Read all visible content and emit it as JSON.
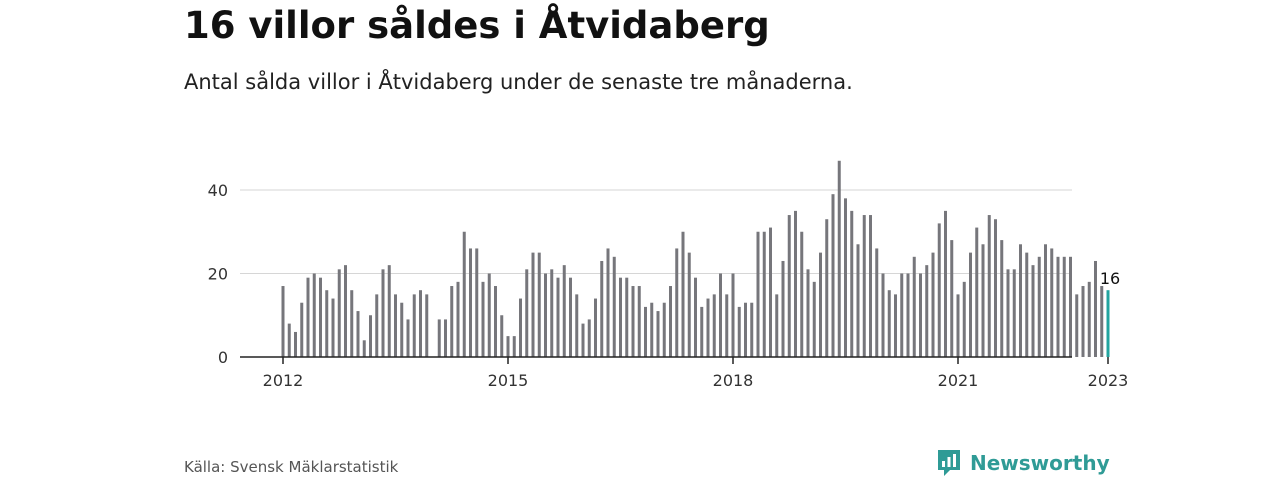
{
  "header": {
    "title": "16 villor såldes i Åtvidaberg",
    "subtitle": "Antal sålda villor i Åtvidaberg under de senaste tre månaderna."
  },
  "footer": {
    "source": "Källa: Svensk Mäklarstatistik",
    "brand": "Newsworthy"
  },
  "colors": {
    "bar": "#76767b",
    "highlight": "#23a5a0",
    "grid": "#d6d6d6",
    "axis": "#222222",
    "brand": "#2f9b96"
  },
  "icons": {
    "brand_logo": "newsworthy-logo-icon"
  },
  "chart_data": {
    "type": "bar",
    "period": "quarterly rolling (monthly bars)",
    "x_start": "2012-01",
    "y_ticks": [
      0,
      20,
      40
    ],
    "ylim": [
      0,
      47
    ],
    "x_ticks": [
      {
        "label": "2012",
        "month_index": 0
      },
      {
        "label": "2015",
        "month_index": 36
      },
      {
        "label": "2018",
        "month_index": 72
      },
      {
        "label": "2021",
        "month_index": 108
      },
      {
        "label": "2023",
        "month_index": 132
      }
    ],
    "grid": true,
    "highlight_label": "16",
    "values": [
      17,
      8,
      6,
      13,
      19,
      20,
      19,
      16,
      14,
      21,
      22,
      16,
      11,
      4,
      10,
      15,
      21,
      22,
      15,
      13,
      9,
      15,
      16,
      15,
      null,
      9,
      9,
      17,
      18,
      30,
      26,
      26,
      18,
      20,
      17,
      10,
      5,
      5,
      14,
      21,
      25,
      25,
      20,
      21,
      19,
      22,
      19,
      15,
      8,
      9,
      14,
      23,
      26,
      24,
      19,
      19,
      17,
      17,
      12,
      13,
      11,
      13,
      17,
      26,
      30,
      25,
      19,
      12,
      14,
      15,
      20,
      15,
      20,
      12,
      13,
      13,
      30,
      30,
      31,
      15,
      23,
      34,
      35,
      30,
      21,
      18,
      25,
      33,
      39,
      47,
      38,
      35,
      27,
      34,
      34,
      26,
      20,
      16,
      15,
      20,
      20,
      24,
      20,
      22,
      25,
      32,
      35,
      28,
      15,
      18,
      25,
      31,
      27,
      34,
      33,
      28,
      21,
      21,
      27,
      25,
      22,
      24,
      27,
      26,
      24,
      24,
      24,
      15,
      17,
      18,
      23,
      17,
      16
    ]
  }
}
